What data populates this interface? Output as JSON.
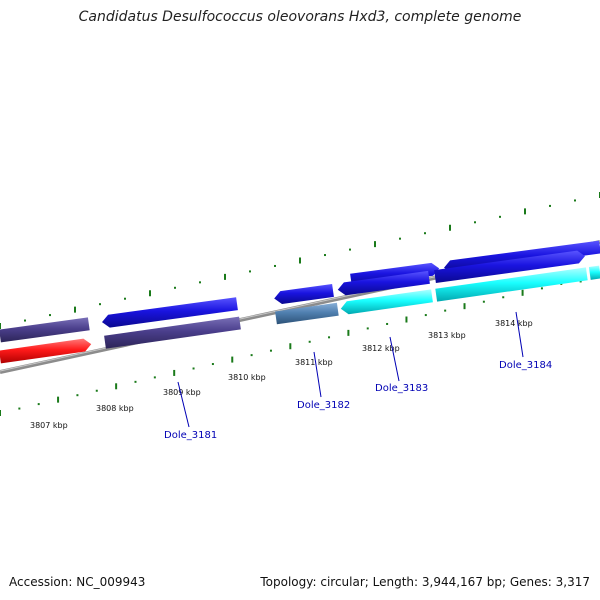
{
  "header": {
    "title": "Candidatus Desulfococcus oleovorans Hxd3, complete genome"
  },
  "footer": {
    "accession": "Accession: NC_009943",
    "summary": "Topology: circular; Length: 3,944,167 bp; Genes: 3,317"
  },
  "colors": {
    "background": "#ffffff",
    "backbone": "#8c8c8c",
    "tick": "#1a7a1a",
    "label_line": "#0000b4",
    "gene_label": "#0000b4",
    "blue": "#1a14e0",
    "indigo": "#4b3f8c",
    "red": "#ff1a1a",
    "cyan": "#1affff",
    "steel": "#5080b0"
  },
  "ruler": {
    "upper_ticks": 25,
    "lower_ticks": 32,
    "labels": [
      "3807 kbp",
      "3808 kbp",
      "3809 kbp",
      "3810 kbp",
      "3811 kbp",
      "3812 kbp",
      "3813 kbp",
      "3814 kbp"
    ]
  },
  "genes_forward_top": [
    {
      "name": "gene",
      "color": "blue",
      "from": 0.585,
      "to": 0.732,
      "dir": "right"
    },
    {
      "name": "gene",
      "color": "blue",
      "from": 0.74,
      "to": 1.0,
      "dir": "left"
    }
  ],
  "genes_forward": [
    {
      "name": "gene",
      "color": "indigo",
      "from": 0.0,
      "to": 0.148,
      "dir": "none"
    },
    {
      "name": "gene",
      "color": "blue",
      "from": 0.17,
      "to": 0.395,
      "dir": "left"
    },
    {
      "name": "gene",
      "color": "blue",
      "from": 0.457,
      "to": 0.555,
      "dir": "left"
    },
    {
      "name": "gene",
      "color": "blue",
      "from": 0.563,
      "to": 0.715,
      "dir": "left"
    },
    {
      "name": "gene",
      "color": "blue",
      "from": 0.725,
      "to": 0.975,
      "dir": "right"
    }
  ],
  "genes_reverse": [
    {
      "name": "gene",
      "color": "red",
      "from": 0.0,
      "to": 0.152,
      "dir": "right"
    },
    {
      "name": "gene",
      "color": "indigo",
      "from": 0.175,
      "to": 0.4,
      "dir": "none"
    },
    {
      "name": "gene",
      "color": "steel",
      "from": 0.46,
      "to": 0.563,
      "dir": "none"
    },
    {
      "name": "gene",
      "color": "cyan",
      "from": 0.568,
      "to": 0.72,
      "dir": "left"
    },
    {
      "name": "gene",
      "color": "cyan",
      "from": 0.727,
      "to": 0.978,
      "dir": "none"
    },
    {
      "name": "gene",
      "color": "cyan",
      "from": 0.983,
      "to": 1.0,
      "dir": "none"
    }
  ],
  "gene_labels": [
    {
      "text": "Dole_3181"
    },
    {
      "text": "Dole_3182"
    },
    {
      "text": "Dole_3183"
    },
    {
      "text": "Dole_3184"
    }
  ]
}
